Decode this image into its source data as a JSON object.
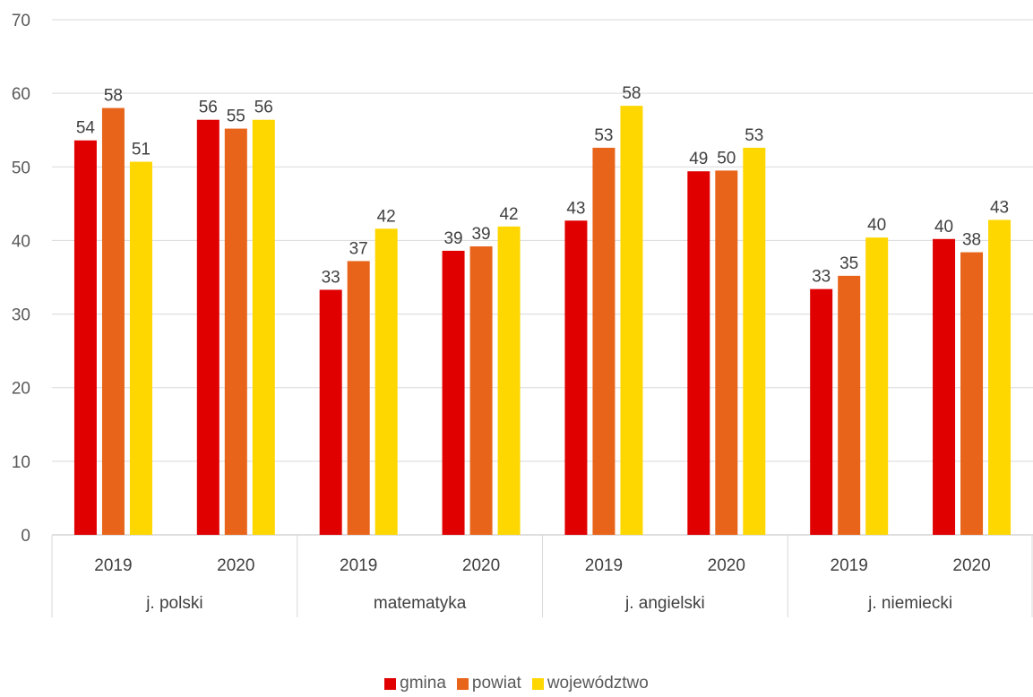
{
  "chart_data": {
    "type": "bar",
    "groups": [
      {
        "label": "j. polski",
        "years": [
          "2019",
          "2020"
        ]
      },
      {
        "label": "matematyka",
        "years": [
          "2019",
          "2020"
        ]
      },
      {
        "label": "j. angielski",
        "years": [
          "2019",
          "2020"
        ]
      },
      {
        "label": "j. niemiecki",
        "years": [
          "2019",
          "2020"
        ]
      }
    ],
    "categories": [
      "2019",
      "2020",
      "2019",
      "2020",
      "2019",
      "2020",
      "2019",
      "2020"
    ],
    "series": [
      {
        "name": "gmina",
        "color": "#e00000",
        "values": [
          53.6,
          56.4,
          33.3,
          38.6,
          42.7,
          49.4,
          33.4,
          40.2
        ],
        "labels": [
          "54",
          "56",
          "33",
          "39",
          "43",
          "49",
          "33",
          "40"
        ]
      },
      {
        "name": "powiat",
        "color": "#e8641a",
        "values": [
          58.0,
          55.2,
          37.2,
          39.2,
          52.6,
          49.5,
          35.2,
          38.4
        ],
        "labels": [
          "58",
          "55",
          "37",
          "39",
          "53",
          "50",
          "35",
          "38"
        ]
      },
      {
        "name": "województwo",
        "color": "#ffd700",
        "values": [
          50.7,
          56.4,
          41.6,
          41.9,
          58.3,
          52.6,
          40.4,
          42.8
        ],
        "labels": [
          "51",
          "56",
          "42",
          "42",
          "58",
          "53",
          "40",
          "43"
        ]
      }
    ],
    "ylim": [
      0,
      70
    ],
    "yticks": [
      0,
      10,
      20,
      30,
      40,
      50,
      60,
      70
    ],
    "grid": true,
    "legend": "bottom"
  }
}
